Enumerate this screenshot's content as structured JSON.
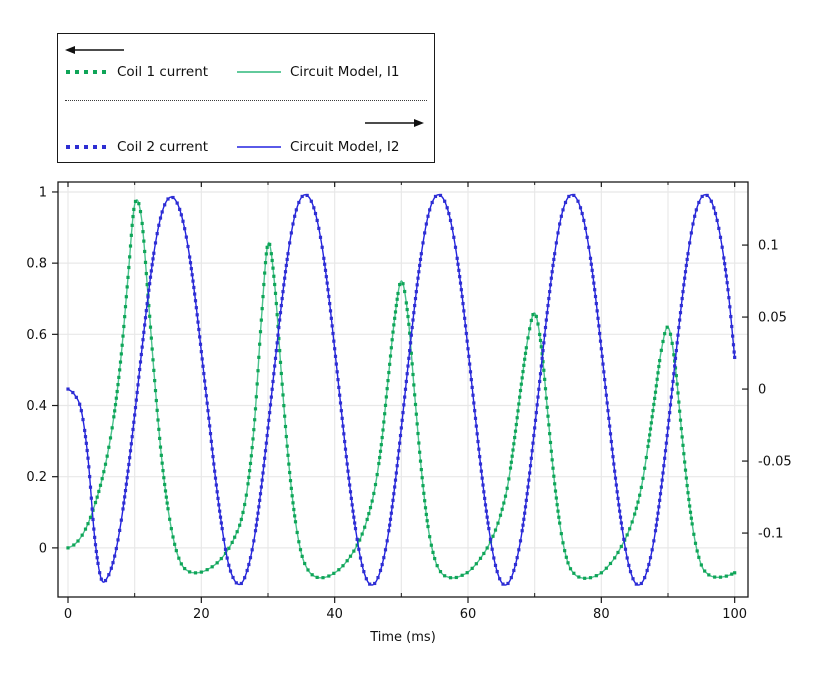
{
  "legend": {
    "coil1": "Coil 1 current",
    "model1": "Circuit Model, I1",
    "coil2": "Coil 2 current",
    "model2": "Circuit Model, I2"
  },
  "colors": {
    "green_marker": "#0fa558",
    "green_line": "#4cc28e",
    "blue_marker": "#2e2ed2",
    "blue_line": "#2323e0",
    "grid": "#e8e8e8",
    "frame": "#1a1a1a",
    "text": "#111111"
  },
  "chart_data": {
    "type": "line",
    "xlabel": "Time (ms)",
    "xlim": [
      -1.5,
      102
    ],
    "x_major_ticks": [
      0,
      20,
      40,
      60,
      80,
      100
    ],
    "x_minor_ticks": [
      10,
      30,
      50,
      70,
      90
    ],
    "x_gridlines": [
      0,
      10,
      20,
      30,
      40,
      50,
      60,
      70,
      80,
      90,
      100
    ],
    "left_axis": {
      "lim": [
        -0.138,
        1.028
      ],
      "ticks": [
        0,
        0.2,
        0.4,
        0.6,
        0.8,
        1
      ]
    },
    "right_axis": {
      "lim": [
        -0.1444,
        0.1438
      ],
      "ticks": [
        -0.1,
        -0.05,
        0,
        0.05,
        0.1
      ]
    },
    "grid": true,
    "x_start": 0,
    "x_step": 1,
    "series": [
      {
        "name": "Circuit Model, I1",
        "axis": "left",
        "render": "line",
        "values_key": "I1",
        "color_key": "green_line"
      },
      {
        "name": "Coil 1 current",
        "axis": "left",
        "render": "markers",
        "values_key": "I1",
        "color_key": "green_marker"
      },
      {
        "name": "Circuit Model, I2",
        "axis": "right",
        "render": "line",
        "values_key": "I2",
        "color_key": "blue_line"
      },
      {
        "name": "Coil 2 current",
        "axis": "right",
        "render": "markers",
        "values_key": "I2",
        "color_key": "blue_marker"
      }
    ],
    "values": {
      "I1": [
        0.0,
        0.01,
        0.032,
        0.068,
        0.12,
        0.185,
        0.27,
        0.385,
        0.545,
        0.76,
        0.965,
        0.93,
        0.71,
        0.47,
        0.26,
        0.11,
        0.01,
        -0.045,
        -0.065,
        -0.07,
        -0.068,
        -0.06,
        -0.048,
        -0.03,
        -0.005,
        0.03,
        0.08,
        0.18,
        0.36,
        0.64,
        0.855,
        0.74,
        0.49,
        0.26,
        0.09,
        -0.015,
        -0.062,
        -0.08,
        -0.084,
        -0.08,
        -0.07,
        -0.055,
        -0.033,
        -0.005,
        0.033,
        0.088,
        0.165,
        0.29,
        0.47,
        0.645,
        0.75,
        0.65,
        0.43,
        0.22,
        0.06,
        -0.03,
        -0.07,
        -0.082,
        -0.084,
        -0.078,
        -0.068,
        -0.05,
        -0.026,
        0.004,
        0.044,
        0.1,
        0.18,
        0.31,
        0.46,
        0.59,
        0.66,
        0.565,
        0.37,
        0.18,
        0.04,
        -0.042,
        -0.074,
        -0.084,
        -0.085,
        -0.08,
        -0.07,
        -0.052,
        -0.028,
        0.004,
        0.042,
        0.095,
        0.17,
        0.285,
        0.42,
        0.555,
        0.62,
        0.525,
        0.335,
        0.155,
        0.025,
        -0.048,
        -0.074,
        -0.082,
        -0.082,
        -0.078,
        -0.07
      ],
      "I2": [
        0.0,
        -0.004,
        -0.015,
        -0.048,
        -0.103,
        -0.132,
        -0.13,
        -0.116,
        -0.091,
        -0.057,
        -0.018,
        0.024,
        0.064,
        0.098,
        0.121,
        0.132,
        0.132,
        0.121,
        0.099,
        0.066,
        0.026,
        -0.015,
        -0.057,
        -0.093,
        -0.12,
        -0.133,
        -0.135,
        -0.124,
        -0.102,
        -0.068,
        -0.027,
        0.016,
        0.058,
        0.094,
        0.12,
        0.133,
        0.134,
        0.124,
        0.102,
        0.069,
        0.028,
        -0.015,
        -0.057,
        -0.093,
        -0.12,
        -0.134,
        -0.135,
        -0.124,
        -0.102,
        -0.068,
        -0.027,
        0.016,
        0.058,
        0.094,
        0.12,
        0.133,
        0.134,
        0.124,
        0.102,
        0.069,
        0.028,
        -0.015,
        -0.057,
        -0.093,
        -0.12,
        -0.134,
        -0.135,
        -0.124,
        -0.102,
        -0.068,
        -0.027,
        0.016,
        0.058,
        0.094,
        0.12,
        0.133,
        0.134,
        0.124,
        0.102,
        0.069,
        0.028,
        -0.015,
        -0.057,
        -0.093,
        -0.12,
        -0.134,
        -0.135,
        -0.124,
        -0.102,
        -0.068,
        -0.027,
        0.016,
        0.058,
        0.094,
        0.12,
        0.133,
        0.134,
        0.124,
        0.102,
        0.069,
        0.022
      ]
    }
  }
}
